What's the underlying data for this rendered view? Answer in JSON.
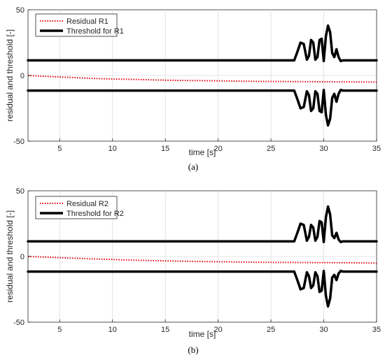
{
  "chart_data": [
    {
      "type": "line",
      "caption": "(a)",
      "xlabel": "time [s]",
      "ylabel": "residual and threshold [-]",
      "xlim": [
        2,
        35
      ],
      "ylim": [
        -50,
        50
      ],
      "xticks": [
        5,
        10,
        15,
        20,
        25,
        30,
        35
      ],
      "yticks": [
        -50,
        0,
        50
      ],
      "grid": true,
      "legend_position": "top-left",
      "series": [
        {
          "name": "Residual R1",
          "color": "#e3000f",
          "style": "dotted",
          "x": [
            2,
            4,
            6,
            8,
            10,
            12,
            14,
            16,
            18,
            20,
            22,
            24,
            26,
            28,
            30,
            32,
            35
          ],
          "y": [
            0,
            -0.8,
            -1.5,
            -2.2,
            -2.7,
            -3.0,
            -3.4,
            -3.7,
            -3.9,
            -4.1,
            -4.3,
            -4.5,
            -4.6,
            -4.7,
            -4.8,
            -4.9,
            -5.0
          ]
        },
        {
          "name": "Threshold for R1",
          "color": "#000000",
          "style": "solid",
          "mirror": true,
          "x": [
            2,
            25,
            27.2,
            27.5,
            27.8,
            28.1,
            28.4,
            28.6,
            28.8,
            29.0,
            29.2,
            29.4,
            29.6,
            29.8,
            30.0,
            30.2,
            30.4,
            30.6,
            30.8,
            31.0,
            31.2,
            31.4,
            31.6,
            31.8,
            32.0,
            35
          ],
          "y": [
            11.5,
            11.5,
            11.5,
            18,
            25,
            24,
            12,
            15,
            27,
            25,
            12,
            14,
            27,
            28,
            11,
            30,
            38,
            33,
            17,
            14,
            20,
            14,
            11,
            11.5,
            11.5,
            11.5
          ]
        }
      ]
    },
    {
      "type": "line",
      "caption": "(b)",
      "xlabel": "time [s]",
      "ylabel": "residual and threshold [-]",
      "xlim": [
        2,
        35
      ],
      "ylim": [
        -50,
        50
      ],
      "xticks": [
        5,
        10,
        15,
        20,
        25,
        30,
        35
      ],
      "yticks": [
        -50,
        0,
        50
      ],
      "grid": true,
      "legend_position": "top-left",
      "series": [
        {
          "name": "Residual R2",
          "color": "#e3000f",
          "style": "dotted",
          "x": [
            2,
            4,
            6,
            8,
            10,
            12,
            14,
            16,
            18,
            20,
            22,
            24,
            26,
            28,
            30,
            32,
            35
          ],
          "y": [
            0,
            -0.6,
            -1.2,
            -1.8,
            -2.3,
            -2.8,
            -3.2,
            -3.5,
            -3.8,
            -4.0,
            -4.2,
            -4.4,
            -4.5,
            -4.6,
            -4.7,
            -4.8,
            -5.0
          ]
        },
        {
          "name": "Threshold for R2",
          "color": "#000000",
          "style": "solid",
          "mirror": true,
          "x": [
            2,
            25,
            27.2,
            27.5,
            27.8,
            28.1,
            28.4,
            28.6,
            28.8,
            29.0,
            29.2,
            29.4,
            29.6,
            29.8,
            30.0,
            30.2,
            30.4,
            30.6,
            30.8,
            31.0,
            31.2,
            31.4,
            31.6,
            31.8,
            32.0,
            35
          ],
          "y": [
            11.5,
            11.5,
            11.5,
            18,
            25,
            24,
            12,
            15,
            24,
            22,
            12,
            15,
            27,
            26,
            11,
            30,
            38,
            32,
            16,
            14,
            18,
            13,
            11,
            11.5,
            11.5,
            11.5
          ]
        }
      ]
    }
  ]
}
